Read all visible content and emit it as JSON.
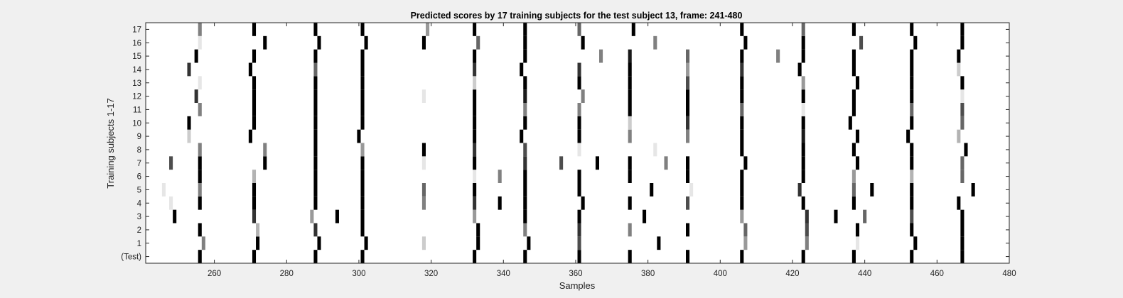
{
  "chart_data": {
    "type": "heatmap",
    "title": "Predicted scores by 17 training subjects for the test subject 13, frame: 241-480",
    "xlabel": "Samples",
    "ylabel": "Training subjects 1-17",
    "xlim": [
      241,
      480
    ],
    "xticks": [
      260,
      280,
      300,
      320,
      340,
      360,
      380,
      400,
      420,
      440,
      460,
      480
    ],
    "row_labels": [
      "(Test)",
      "1",
      "2",
      "3",
      "4",
      "5",
      "6",
      "7",
      "8",
      "9",
      "10",
      "11",
      "12",
      "13",
      "14",
      "15",
      "16",
      "17"
    ],
    "colormap": "gray-inverted",
    "background_color": "#ffffff",
    "figure_color": "#f0f0f0",
    "grid": false,
    "rows": [
      {
        "label": "(Test)",
        "cells": [
          [
            256,
            1
          ],
          [
            271,
            1
          ],
          [
            288,
            1
          ],
          [
            301,
            1
          ],
          [
            332,
            1
          ],
          [
            346,
            1
          ],
          [
            361,
            1
          ],
          [
            375,
            1
          ],
          [
            391,
            1
          ],
          [
            406,
            1
          ],
          [
            423,
            1
          ],
          [
            437,
            1
          ],
          [
            453,
            1
          ],
          [
            467,
            1
          ]
        ]
      },
      {
        "label": "1",
        "cells": [
          [
            257,
            0.5
          ],
          [
            272,
            1
          ],
          [
            289,
            1
          ],
          [
            302,
            1
          ],
          [
            318,
            0.2
          ],
          [
            333,
            1
          ],
          [
            347,
            1
          ],
          [
            361,
            0.7
          ],
          [
            383,
            1
          ],
          [
            407,
            0.4
          ],
          [
            424,
            0.5
          ],
          [
            438,
            0.1
          ],
          [
            454,
            1
          ],
          [
            467,
            1
          ]
        ]
      },
      {
        "label": "2",
        "cells": [
          [
            256,
            1
          ],
          [
            272,
            0.3
          ],
          [
            288,
            0.8
          ],
          [
            301,
            1
          ],
          [
            333,
            1
          ],
          [
            346,
            0.5
          ],
          [
            361,
            0.8
          ],
          [
            375,
            0.5
          ],
          [
            391,
            1
          ],
          [
            407,
            0.6
          ],
          [
            424,
            0.7
          ],
          [
            438,
            1
          ],
          [
            453,
            1
          ],
          [
            467,
            1
          ]
        ]
      },
      {
        "label": "3",
        "cells": [
          [
            249,
            1
          ],
          [
            271,
            0.8
          ],
          [
            287,
            0.4
          ],
          [
            294,
            1
          ],
          [
            301,
            1
          ],
          [
            332,
            0.4
          ],
          [
            346,
            1
          ],
          [
            361,
            1
          ],
          [
            379,
            1
          ],
          [
            406,
            0.4
          ],
          [
            424,
            0.8
          ],
          [
            432,
            1
          ],
          [
            440,
            0.6
          ],
          [
            453,
            0.7
          ],
          [
            467,
            1
          ]
        ]
      },
      {
        "label": "4",
        "cells": [
          [
            248,
            0.1
          ],
          [
            256,
            1
          ],
          [
            271,
            1
          ],
          [
            288,
            1
          ],
          [
            301,
            1
          ],
          [
            318,
            0.5
          ],
          [
            332,
            0.8
          ],
          [
            339,
            1
          ],
          [
            346,
            1
          ],
          [
            362,
            1
          ],
          [
            375,
            1
          ],
          [
            391,
            0.7
          ],
          [
            406,
            1
          ],
          [
            423,
            1
          ],
          [
            437,
            1
          ],
          [
            453,
            1
          ],
          [
            466,
            1
          ]
        ]
      },
      {
        "label": "5",
        "cells": [
          [
            246,
            0.1
          ],
          [
            256,
            0.5
          ],
          [
            271,
            1
          ],
          [
            288,
            1
          ],
          [
            301,
            1
          ],
          [
            318,
            0.6
          ],
          [
            332,
            1
          ],
          [
            346,
            1
          ],
          [
            361,
            1
          ],
          [
            381,
            1
          ],
          [
            392,
            0.1
          ],
          [
            406,
            1
          ],
          [
            422,
            0.8
          ],
          [
            437,
            0.6
          ],
          [
            442,
            1
          ],
          [
            453,
            1
          ],
          [
            470,
            1
          ]
        ]
      },
      {
        "label": "6",
        "cells": [
          [
            256,
            1
          ],
          [
            271,
            0.3
          ],
          [
            288,
            1
          ],
          [
            301,
            1
          ],
          [
            332,
            0.1
          ],
          [
            339,
            0.5
          ],
          [
            346,
            1
          ],
          [
            361,
            1
          ],
          [
            375,
            1
          ],
          [
            391,
            1
          ],
          [
            406,
            1
          ],
          [
            423,
            1
          ],
          [
            437,
            0.4
          ],
          [
            453,
            0.3
          ],
          [
            467,
            0.6
          ]
        ]
      },
      {
        "label": "7",
        "cells": [
          [
            248,
            0.7
          ],
          [
            256,
            1
          ],
          [
            274,
            1
          ],
          [
            288,
            1
          ],
          [
            301,
            1
          ],
          [
            318,
            0.1
          ],
          [
            332,
            1
          ],
          [
            346,
            0.8
          ],
          [
            356,
            0.7
          ],
          [
            366,
            1
          ],
          [
            375,
            1
          ],
          [
            385,
            0.5
          ],
          [
            391,
            1
          ],
          [
            407,
            1
          ],
          [
            423,
            1
          ],
          [
            438,
            1
          ],
          [
            453,
            1
          ],
          [
            467,
            0.6
          ]
        ]
      },
      {
        "label": "8",
        "cells": [
          [
            256,
            0.5
          ],
          [
            274,
            0.5
          ],
          [
            288,
            1
          ],
          [
            301,
            0.4
          ],
          [
            318,
            1
          ],
          [
            332,
            0.8
          ],
          [
            346,
            0.7
          ],
          [
            361,
            0.1
          ],
          [
            382,
            0.1
          ],
          [
            406,
            1
          ],
          [
            423,
            1
          ],
          [
            437,
            1
          ],
          [
            453,
            1
          ],
          [
            468,
            1
          ]
        ]
      },
      {
        "label": "9",
        "cells": [
          [
            253,
            0.2
          ],
          [
            270,
            1
          ],
          [
            288,
            1
          ],
          [
            300,
            1
          ],
          [
            332,
            1
          ],
          [
            345,
            1
          ],
          [
            361,
            1
          ],
          [
            375,
            0.5
          ],
          [
            391,
            0.5
          ],
          [
            406,
            1
          ],
          [
            423,
            0.9
          ],
          [
            438,
            1
          ],
          [
            452,
            1
          ],
          [
            466,
            0.3
          ]
        ]
      },
      {
        "label": "10",
        "cells": [
          [
            253,
            1
          ],
          [
            271,
            1
          ],
          [
            288,
            1
          ],
          [
            301,
            1
          ],
          [
            332,
            1
          ],
          [
            346,
            1
          ],
          [
            361,
            1
          ],
          [
            375,
            0.2
          ],
          [
            391,
            0.8
          ],
          [
            406,
            1
          ],
          [
            423,
            1
          ],
          [
            436,
            1
          ],
          [
            453,
            1
          ],
          [
            467,
            0.6
          ]
        ]
      },
      {
        "label": "11",
        "cells": [
          [
            256,
            0.5
          ],
          [
            271,
            1
          ],
          [
            288,
            1
          ],
          [
            301,
            1
          ],
          [
            332,
            1
          ],
          [
            346,
            0.5
          ],
          [
            361,
            0.5
          ],
          [
            375,
            1
          ],
          [
            391,
            1
          ],
          [
            406,
            0.6
          ],
          [
            423,
            0.1
          ],
          [
            437,
            1
          ],
          [
            453,
            0.6
          ],
          [
            467,
            0.7
          ]
        ]
      },
      {
        "label": "12",
        "cells": [
          [
            255,
            0.8
          ],
          [
            271,
            1
          ],
          [
            288,
            1
          ],
          [
            301,
            1
          ],
          [
            318,
            0.1
          ],
          [
            332,
            1
          ],
          [
            346,
            0.9
          ],
          [
            362,
            0.5
          ],
          [
            375,
            1
          ],
          [
            391,
            1
          ],
          [
            406,
            1
          ],
          [
            423,
            1
          ],
          [
            437,
            1
          ],
          [
            453,
            1
          ],
          [
            467,
            0.1
          ]
        ]
      },
      {
        "label": "13",
        "cells": [
          [
            256,
            0.1
          ],
          [
            271,
            1
          ],
          [
            288,
            1
          ],
          [
            301,
            1
          ],
          [
            332,
            0.2
          ],
          [
            346,
            1
          ],
          [
            361,
            1
          ],
          [
            375,
            1
          ],
          [
            391,
            0.7
          ],
          [
            406,
            1
          ],
          [
            423,
            0.4
          ],
          [
            438,
            1
          ],
          [
            453,
            1
          ],
          [
            467,
            1
          ]
        ]
      },
      {
        "label": "14",
        "cells": [
          [
            253,
            0.8
          ],
          [
            270,
            1
          ],
          [
            288,
            0.6
          ],
          [
            301,
            1
          ],
          [
            332,
            0.8
          ],
          [
            345,
            1
          ],
          [
            361,
            0.8
          ],
          [
            375,
            1
          ],
          [
            391,
            0.4
          ],
          [
            406,
            0.8
          ],
          [
            422,
            1
          ],
          [
            437,
            1
          ],
          [
            453,
            1
          ],
          [
            466,
            0.2
          ]
        ]
      },
      {
        "label": "15",
        "cells": [
          [
            255,
            1
          ],
          [
            271,
            1
          ],
          [
            288,
            1
          ],
          [
            301,
            1
          ],
          [
            332,
            1
          ],
          [
            346,
            1
          ],
          [
            367,
            0.5
          ],
          [
            375,
            0.9
          ],
          [
            391,
            0.6
          ],
          [
            406,
            1
          ],
          [
            416,
            0.5
          ],
          [
            423,
            1
          ],
          [
            437,
            1
          ],
          [
            453,
            1
          ],
          [
            466,
            1
          ]
        ]
      },
      {
        "label": "16",
        "cells": [
          [
            256,
            0.1
          ],
          [
            274,
            1
          ],
          [
            289,
            1
          ],
          [
            302,
            1
          ],
          [
            318,
            1
          ],
          [
            333,
            0.6
          ],
          [
            346,
            1
          ],
          [
            362,
            1
          ],
          [
            382,
            0.5
          ],
          [
            407,
            1
          ],
          [
            423,
            1
          ],
          [
            439,
            0.7
          ],
          [
            454,
            1
          ],
          [
            467,
            1
          ]
        ]
      },
      {
        "label": "17",
        "cells": [
          [
            256,
            0.5
          ],
          [
            271,
            1
          ],
          [
            288,
            1
          ],
          [
            301,
            1
          ],
          [
            319,
            0.4
          ],
          [
            332,
            1
          ],
          [
            346,
            1
          ],
          [
            361,
            0.6
          ],
          [
            376,
            1
          ],
          [
            406,
            1
          ],
          [
            423,
            0.6
          ],
          [
            437,
            1
          ],
          [
            453,
            1
          ],
          [
            467,
            1
          ]
        ]
      }
    ]
  }
}
